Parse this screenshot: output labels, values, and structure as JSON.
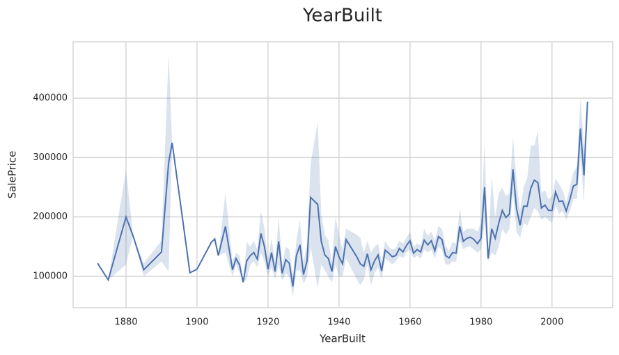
{
  "chart_data": {
    "type": "line",
    "title": "YearBuilt",
    "x_label": "YearBuilt",
    "y_label": "SalePrice",
    "color": "#4c72b0",
    "grid": true,
    "x": [
      1872,
      1875,
      1880,
      1882,
      1885,
      1890,
      1892,
      1893,
      1898,
      1900,
      1904,
      1905,
      1906,
      1908,
      1910,
      1911,
      1912,
      1913,
      1914,
      1915,
      1916,
      1917,
      1918,
      1919,
      1920,
      1921,
      1922,
      1923,
      1924,
      1925,
      1926,
      1927,
      1928,
      1929,
      1930,
      1931,
      1932,
      1934,
      1935,
      1936,
      1937,
      1938,
      1939,
      1940,
      1941,
      1942,
      1945,
      1946,
      1947,
      1948,
      1949,
      1950,
      1951,
      1952,
      1953,
      1954,
      1955,
      1956,
      1957,
      1958,
      1959,
      1960,
      1961,
      1962,
      1963,
      1964,
      1965,
      1966,
      1967,
      1968,
      1969,
      1970,
      1971,
      1972,
      1973,
      1974,
      1975,
      1976,
      1977,
      1978,
      1979,
      1980,
      1981,
      1982,
      1983,
      1984,
      1985,
      1986,
      1987,
      1988,
      1989,
      1990,
      1991,
      1992,
      1993,
      1994,
      1995,
      1996,
      1997,
      1998,
      1999,
      2000,
      2001,
      2002,
      2003,
      2004,
      2005,
      2006,
      2007,
      2008,
      2009,
      2010
    ],
    "values": [
      122000,
      94000,
      200000,
      168000,
      111000,
      141000,
      291000,
      325000,
      106000,
      112000,
      157000,
      163000,
      135000,
      184000,
      111000,
      130000,
      119000,
      90000,
      126000,
      135000,
      140000,
      129000,
      172000,
      150000,
      112000,
      140000,
      108000,
      159000,
      105000,
      128000,
      122000,
      83000,
      135000,
      153000,
      103000,
      126000,
      233000,
      221000,
      159000,
      136000,
      130000,
      108000,
      150000,
      133000,
      121000,
      162000,
      133000,
      121000,
      117000,
      138000,
      111000,
      126000,
      136000,
      109000,
      144000,
      139000,
      133000,
      135000,
      147000,
      141000,
      152000,
      160000,
      139000,
      145000,
      141000,
      161000,
      153000,
      160000,
      143000,
      167000,
      162000,
      135000,
      131000,
      140000,
      139000,
      184000,
      159000,
      164000,
      166000,
      162000,
      155000,
      164000,
      250000,
      130000,
      180000,
      164000,
      190000,
      211000,
      199000,
      205000,
      280000,
      214000,
      186000,
      218000,
      218000,
      248000,
      262000,
      258000,
      215000,
      220000,
      211000,
      211000,
      242000,
      226000,
      227000,
      210000,
      229000,
      252000,
      255000,
      349000,
      270000,
      394000
    ],
    "ci_lower": [
      122000,
      94000,
      120000,
      168000,
      100000,
      125000,
      108000,
      325000,
      106000,
      112000,
      157000,
      163000,
      135000,
      140000,
      100000,
      120000,
      105000,
      90000,
      95000,
      120000,
      125000,
      115000,
      140000,
      125000,
      100000,
      115000,
      95000,
      120000,
      92000,
      105000,
      100000,
      65000,
      110000,
      110000,
      88000,
      100000,
      150000,
      80000,
      120000,
      110000,
      100000,
      90000,
      120000,
      100000,
      100000,
      130000,
      95000,
      85000,
      95000,
      120000,
      85000,
      105000,
      115000,
      95000,
      130000,
      125000,
      120000,
      125000,
      135000,
      130000,
      140000,
      145000,
      130000,
      135000,
      130000,
      145000,
      140000,
      145000,
      130000,
      150000,
      145000,
      120000,
      120000,
      125000,
      125000,
      160000,
      145000,
      150000,
      150000,
      145000,
      140000,
      145000,
      190000,
      125000,
      140000,
      135000,
      150000,
      180000,
      170000,
      180000,
      240000,
      175000,
      165000,
      190000,
      185000,
      200000,
      215000,
      210000,
      195000,
      200000,
      195000,
      190000,
      220000,
      205000,
      210000,
      195000,
      210000,
      230000,
      230000,
      300000,
      225000,
      394000
    ],
    "ci_upper": [
      122000,
      94000,
      280000,
      168000,
      122000,
      160000,
      475000,
      325000,
      106000,
      112000,
      157000,
      163000,
      135000,
      240000,
      125000,
      140000,
      135000,
      90000,
      158000,
      150000,
      160000,
      145000,
      210000,
      180000,
      125000,
      165000,
      122000,
      200000,
      120000,
      150000,
      145000,
      100000,
      160000,
      195000,
      125000,
      155000,
      290000,
      360000,
      205000,
      170000,
      160000,
      125000,
      200000,
      170000,
      145000,
      180000,
      170000,
      165000,
      140000,
      160000,
      140000,
      150000,
      155000,
      125000,
      160000,
      150000,
      145000,
      147000,
      160000,
      155000,
      165000,
      175000,
      150000,
      155000,
      152000,
      180000,
      168000,
      175000,
      160000,
      185000,
      180000,
      152000,
      143000,
      158000,
      155000,
      215000,
      175000,
      180000,
      180000,
      180000,
      175000,
      190000,
      325000,
      140000,
      270000,
      200000,
      240000,
      250000,
      235000,
      240000,
      335000,
      260000,
      210000,
      250000,
      265000,
      320000,
      320000,
      345000,
      240000,
      245000,
      230000,
      235000,
      265000,
      255000,
      245000,
      225000,
      250000,
      275000,
      285000,
      400000,
      320000,
      394000
    ],
    "xlim": [
      1865.1,
      2017.1
    ],
    "ylim": [
      47260,
      494900
    ],
    "xticks": [
      1880,
      1900,
      1920,
      1940,
      1960,
      1980,
      2000
    ],
    "yticks": [
      100000,
      200000,
      300000,
      400000
    ]
  }
}
